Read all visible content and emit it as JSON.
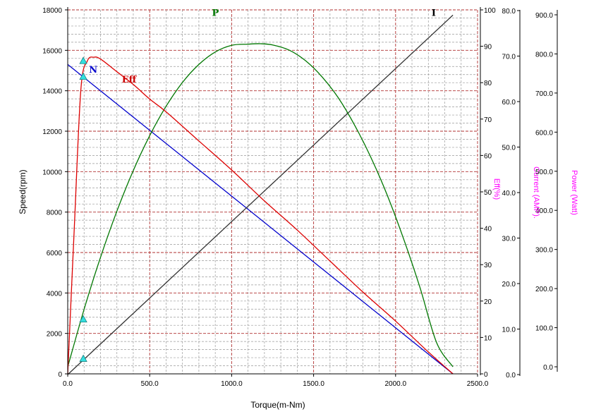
{
  "chart_data": {
    "type": "line",
    "xlabel": "Torque(m-Nm)",
    "ylabel": "Speed(rpm)",
    "xlim": [
      0,
      2500
    ],
    "x_ticks": [
      "0.0",
      "500.0",
      "1000.0",
      "1500.0",
      "2000.0",
      "2500.0"
    ],
    "ylim": [
      0,
      18000
    ],
    "y_ticks": [
      "0",
      "2000",
      "4000",
      "6000",
      "8000",
      "10000",
      "12000",
      "14000",
      "16000",
      "18000"
    ],
    "grid": "on",
    "axes": {
      "eff": {
        "label": "Eff(%)",
        "lim": [
          0,
          100
        ],
        "ticks": [
          "0",
          "10",
          "20",
          "30",
          "40",
          "50",
          "60",
          "70",
          "80",
          "90",
          "100"
        ]
      },
      "current": {
        "label": "Current (AMP).",
        "lim": [
          0,
          80
        ],
        "ticks": [
          "0.0",
          "10.0",
          "20.0",
          "30.0",
          "40.0",
          "50.0",
          "60.0",
          "70.0",
          "80.0"
        ]
      },
      "power": {
        "label": "Power (Watt)",
        "lim": [
          0,
          900
        ],
        "ticks": [
          "0.0",
          "100.0",
          "200.0",
          "300.0",
          "400.0",
          "500.0",
          "600.0",
          "700.0",
          "800.0",
          "900.0"
        ]
      }
    },
    "series": [
      {
        "name": "N",
        "axis": "speed",
        "color": "#0000cc",
        "x": [
          0,
          2350
        ],
        "y": [
          15300,
          0
        ]
      },
      {
        "name": "I",
        "axis": "current",
        "color": "#333333",
        "x": [
          0,
          2350
        ],
        "y": [
          0,
          79
        ]
      },
      {
        "name": "P",
        "axis": "power",
        "color": "#007700",
        "x": [
          0,
          100,
          200,
          300,
          400,
          500,
          600,
          700,
          800,
          900,
          1000,
          1100,
          1175,
          1250,
          1350,
          1450,
          1550,
          1650,
          1750,
          1850,
          1950,
          2050,
          2150,
          2250,
          2350
        ],
        "y": [
          0,
          147,
          280,
          398,
          502,
          591,
          666,
          727,
          773,
          805,
          822,
          825,
          826,
          823,
          810,
          783,
          742,
          688,
          618,
          535,
          438,
          326,
          201,
          62,
          0
        ]
      },
      {
        "name": "Eff",
        "axis": "eff",
        "color": "#dd0000",
        "x": [
          0,
          40,
          80,
          120,
          160,
          200,
          300,
          400,
          500,
          600,
          800,
          1000,
          1200,
          1400,
          1600,
          1800,
          2000,
          2200,
          2350
        ],
        "y": [
          0,
          40,
          78,
          86,
          87,
          86.5,
          83,
          79.5,
          75.5,
          72,
          64,
          56,
          47.5,
          39.5,
          31,
          22.5,
          14.5,
          6,
          0
        ]
      }
    ],
    "markers": [
      {
        "axis": "speed",
        "x": 95,
        "y": 14700
      },
      {
        "axis": "speed",
        "x": 95,
        "y": 2700
      },
      {
        "axis": "eff",
        "x": 95,
        "y": 86
      },
      {
        "axis": "current",
        "x": 95,
        "y": 3.5
      }
    ],
    "annotations": [
      {
        "text": "N",
        "color": "#0000cc",
        "x": 130,
        "y": 14900
      },
      {
        "text": "Eff",
        "color": "#cc0000",
        "x": 330,
        "y": 14400
      },
      {
        "text": "P",
        "color": "#007700",
        "x": 880,
        "y": 17700
      },
      {
        "text": "I",
        "color": "#000000",
        "x": 2220,
        "y": 17700
      }
    ]
  }
}
